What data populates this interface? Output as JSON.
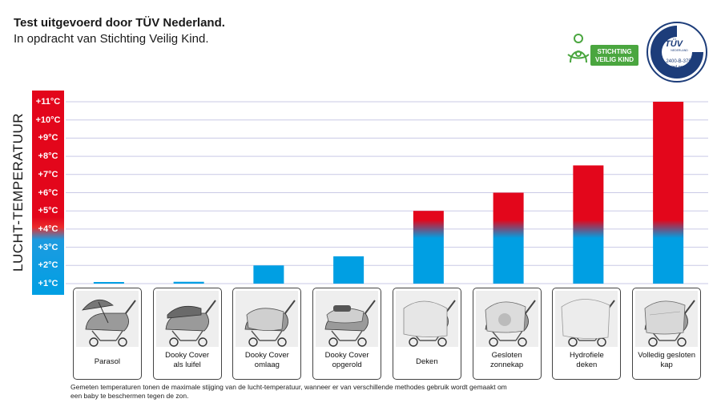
{
  "header": {
    "title": "Test uitgevoerd door TÜV Nederland.",
    "subtitle": "In opdracht van Stichting Veilig Kind."
  },
  "logos": {
    "veilig_kind": {
      "line1": "STICHTING",
      "line2": "VEILIG KIND"
    },
    "tuv": {
      "name": "TÜV",
      "sub": "NEDERLAND",
      "code": "2400-B-375",
      "tested": "Tested product"
    }
  },
  "chart_data": {
    "type": "bar",
    "title": "",
    "xlabel": "",
    "ylabel": "LUCHT-TEMPERATUUR",
    "yticks": [
      "+1°C",
      "+2°C",
      "+3°C",
      "+4°C",
      "+5°C",
      "+6°C",
      "+7°C",
      "+8°C",
      "+9°C",
      "+10°C",
      "+11°C"
    ],
    "ylim": [
      1,
      11
    ],
    "grid": true,
    "categories": [
      "Parasol",
      "Dooky Cover\nals luifel",
      "Dooky Cover\nomlaag",
      "Dooky Cover\nopgerold",
      "Deken",
      "Gesloten\nzonnekap",
      "Hydrofiele\ndeken",
      "Volledig gesloten\nkap"
    ],
    "values": [
      1.0,
      1.1,
      2.0,
      2.5,
      5.0,
      6.0,
      7.5,
      11.0
    ],
    "colors": {
      "cool": "#009fe3",
      "warm": "#e3061b",
      "grid": "#c9c9e6"
    },
    "color_transition_range": [
      3.5,
      4.5
    ]
  },
  "footnote": "Gemeten temperaturen tonen de maximale stijging van de lucht-temperatuur, wanneer er van verschillende methodes gebruik wordt gemaakt om een baby te beschermen tegen de zon.",
  "icons": [
    "parasol-icon",
    "canopy-stroller-icon",
    "cover-down-stroller-icon",
    "cover-rolled-stroller-icon",
    "blanket-stroller-icon",
    "closed-hood-stroller-icon",
    "muslin-stroller-icon",
    "fully-closed-stroller-icon"
  ]
}
